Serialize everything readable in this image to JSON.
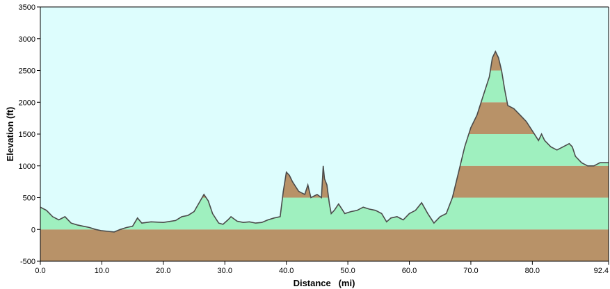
{
  "chart_data": {
    "type": "area",
    "title": "",
    "xlabel": "Distance   (mi)",
    "ylabel": "Elevation (ft)",
    "xlim": [
      0,
      92.4
    ],
    "ylim": [
      -500,
      3500
    ],
    "x_ticks": [
      "0.0",
      "10.0",
      "20.0",
      "30.0",
      "40.0",
      "50.0",
      "60.0",
      "70.0",
      "80.0",
      "92.4"
    ],
    "y_ticks": [
      "3500",
      "3000",
      "2500",
      "2000",
      "1500",
      "1000",
      "500",
      "0",
      "-500"
    ],
    "grid": false,
    "band_interval_ft": 500,
    "colors": {
      "sky": "#ddfdfd",
      "band_green": "#9ff0bf",
      "band_brown": "#b89268",
      "profile_line": "#4a4a4a",
      "axis": "#000000"
    },
    "x": [
      0,
      1,
      2,
      3,
      4,
      5,
      6,
      7,
      8,
      9,
      10,
      11,
      12,
      13,
      14,
      15,
      15.8,
      16.5,
      18,
      20,
      22,
      23,
      24,
      25,
      26,
      26.6,
      27.3,
      28,
      29,
      29.7,
      30.5,
      31,
      32,
      33,
      34,
      35,
      36,
      37,
      38,
      39,
      39.5,
      40,
      40.5,
      41,
      42,
      43,
      43.5,
      44,
      45,
      45.7,
      46,
      46.2,
      46.6,
      47,
      47.3,
      47.8,
      48.5,
      49.5,
      50.5,
      51.5,
      52.5,
      53.5,
      54.5,
      55.5,
      56.3,
      57,
      58,
      59,
      60,
      61,
      62,
      63,
      64,
      65,
      66,
      67,
      68,
      69,
      70,
      71,
      72,
      73,
      73.5,
      74,
      74.5,
      75,
      75.5,
      76,
      77,
      78,
      79,
      80,
      81,
      81.5,
      82,
      83,
      84,
      85,
      86,
      86.5,
      87,
      88,
      89,
      90,
      91,
      92,
      92.4
    ],
    "y": [
      350,
      300,
      200,
      150,
      200,
      100,
      70,
      50,
      30,
      0,
      -20,
      -30,
      -40,
      0,
      30,
      50,
      180,
      100,
      120,
      110,
      140,
      200,
      220,
      280,
      450,
      550,
      450,
      250,
      100,
      80,
      150,
      200,
      130,
      110,
      120,
      100,
      110,
      150,
      180,
      200,
      600,
      900,
      850,
      750,
      600,
      550,
      700,
      500,
      550,
      500,
      1000,
      800,
      700,
      400,
      250,
      300,
      400,
      250,
      280,
      300,
      350,
      320,
      300,
      250,
      120,
      180,
      200,
      150,
      250,
      300,
      420,
      250,
      100,
      200,
      250,
      500,
      900,
      1300,
      1600,
      1800,
      2100,
      2400,
      2700,
      2800,
      2700,
      2500,
      2200,
      1950,
      1900,
      1800,
      1700,
      1550,
      1400,
      1500,
      1400,
      1300,
      1250,
      1300,
      1350,
      1300,
      1150,
      1050,
      1000,
      1000,
      1050,
      1050,
      1050
    ]
  }
}
